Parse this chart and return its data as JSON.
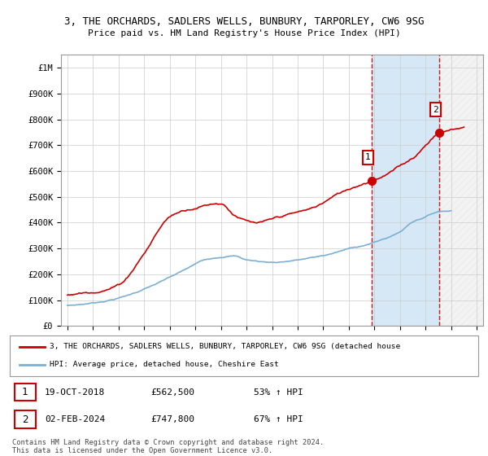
{
  "title": "3, THE ORCHARDS, SADLERS WELLS, BUNBURY, TARPORLEY, CW6 9SG",
  "subtitle": "Price paid vs. HM Land Registry's House Price Index (HPI)",
  "ylim": [
    0,
    1050000
  ],
  "yticks": [
    0,
    100000,
    200000,
    300000,
    400000,
    500000,
    600000,
    700000,
    800000,
    900000,
    1000000
  ],
  "ytick_labels": [
    "£0",
    "£100K",
    "£200K",
    "£300K",
    "£400K",
    "£500K",
    "£600K",
    "£700K",
    "£800K",
    "£900K",
    "£1M"
  ],
  "hpi_color": "#7bafd4",
  "price_color": "#cc0000",
  "marker1_x": 2018.79,
  "marker1_value": 562500,
  "marker2_x": 2024.08,
  "marker2_value": 747800,
  "shade_start": 2018.79,
  "shade_end": 2024.08,
  "hatch_start": 2024.08,
  "hatch_end": 2027.5,
  "legend_line1": "3, THE ORCHARDS, SADLERS WELLS, BUNBURY, TARPORLEY, CW6 9SG (detached house",
  "legend_line2": "HPI: Average price, detached house, Cheshire East",
  "footnote": "Contains HM Land Registry data © Crown copyright and database right 2024.\nThis data is licensed under the Open Government Licence v3.0.",
  "background_color": "#ffffff",
  "grid_color": "#cccccc",
  "shaded_region_color": "#d6e8f5",
  "xmin": 1994.5,
  "xmax": 2027.5
}
